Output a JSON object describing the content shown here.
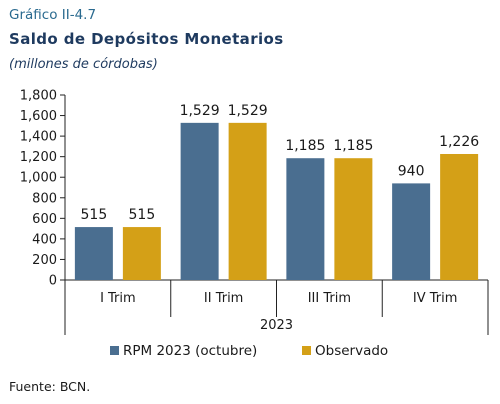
{
  "figure": {
    "number": "Gráfico II-4.7",
    "title": "Saldo de Depósitos Monetarios",
    "subtitle": "(millones de córdobas)",
    "source": "Fuente: BCN."
  },
  "chart_data": {
    "type": "bar",
    "categories": [
      "I Trim",
      "II Trim",
      "III Trim",
      "IV Trim"
    ],
    "group_label": "2023",
    "series": [
      {
        "name": "RPM 2023 (octubre)",
        "values": [
          515,
          1529,
          1185,
          940
        ],
        "color": "#4a6e90"
      },
      {
        "name": "Observado",
        "values": [
          515,
          1529,
          1185,
          1226
        ],
        "color": "#d4a017"
      }
    ],
    "data_labels": [
      [
        "515",
        "1,529",
        "1,185",
        "940"
      ],
      [
        "515",
        "1,529",
        "1,185",
        "1,226"
      ]
    ],
    "ylim": [
      0,
      1800
    ],
    "yticks": [
      0,
      200,
      400,
      600,
      800,
      1000,
      1200,
      1400,
      1600,
      1800
    ],
    "ytick_labels": [
      "0",
      "200",
      "400",
      "600",
      "800",
      "1,000",
      "1,200",
      "1,400",
      "1,600",
      "1,800"
    ],
    "xlabel": "",
    "ylabel": "",
    "grid": false,
    "legend_position": "bottom"
  }
}
